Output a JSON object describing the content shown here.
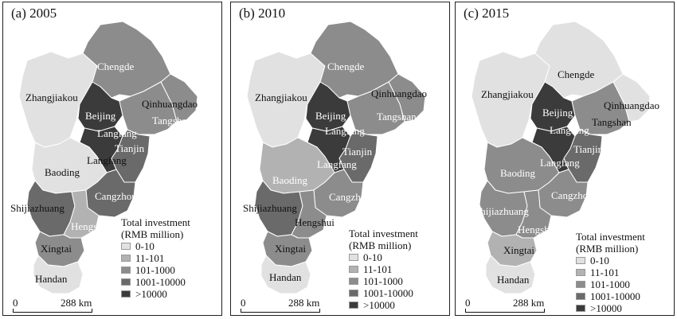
{
  "colors": {
    "c0": "#e1e1e1",
    "c1": "#b2b2b2",
    "c2": "#8c8c8c",
    "c3": "#6a6a6a",
    "c4": "#3b3b3b"
  },
  "legend": {
    "title_line1": "Total investment",
    "title_line2": "(RMB million)",
    "classes": [
      {
        "label": "0-10",
        "color_key": "c0"
      },
      {
        "label": "11-101",
        "color_key": "c1"
      },
      {
        "label": "101-1000",
        "color_key": "c2"
      },
      {
        "label": "1001-10000",
        "color_key": "c3"
      },
      {
        "label": ">10000",
        "color_key": "c4"
      }
    ]
  },
  "scale_bar": {
    "zero": "0",
    "distance": "288 km"
  },
  "panels": [
    {
      "title": "(a) 2005",
      "fill": {
        "Zhangjiakou": "c0",
        "Chengde": "c2",
        "Beijing": "c4",
        "Langfang": "c4",
        "Qinhuangdao": "c2",
        "Tangshan": "c2",
        "Tianjin": "c3",
        "Baoding": "c0",
        "Cangzhou": "c3",
        "Shijiazhuang": "c3",
        "Hengshui": "c1",
        "Xingtai": "c2",
        "Handan": "c0"
      },
      "labels": {
        "Zhangjiakou": "Zhangjiakou",
        "Chengde": "Chengde",
        "Beijing": "Beijing",
        "Qinhuangdao": "Qinhuangdao",
        "Tangshan": "Tangshan",
        "Langfang_north": "Langfang",
        "Tianjin": "Tianjin",
        "Langfang_south": "Langfang",
        "Baoding": "Baoding",
        "Cangzhou": "Cangzhou",
        "Shijiazhuang": "Shijiazhuang",
        "Hengshui": "Hengshui",
        "Xingtai": "Xingtai",
        "Handan": "Handan"
      }
    },
    {
      "title": "(b) 2010",
      "fill": {
        "Zhangjiakou": "c0",
        "Chengde": "c2",
        "Beijing": "c4",
        "Langfang": "c4",
        "Qinhuangdao": "c2",
        "Tangshan": "c2",
        "Tianjin": "c3",
        "Baoding": "c1",
        "Cangzhou": "c2",
        "Shijiazhuang": "c3",
        "Hengshui": "c2",
        "Xingtai": "c2",
        "Handan": "c0"
      },
      "labels": {
        "Zhangjiakou": "Zhangjiakou",
        "Chengde": "Chengde",
        "Beijing": "Beijing",
        "Qinhuangdao": "Qinhuangdao",
        "Langfang_north": "Langfang",
        "Tangshan": "Tangshan",
        "Tianjin": "Tianjin",
        "Langfang_south": "Langfang",
        "Baoding": "Baoding",
        "Cangzhou": "Cangzhou",
        "Shijiazhuang": "Shijiazhuang",
        "Hengshui": "Hengshui",
        "Xingtai": "Xingtai",
        "Handan": "Handan"
      }
    },
    {
      "title": "(c) 2015",
      "fill": {
        "Zhangjiakou": "c0",
        "Chengde": "c0",
        "Beijing": "c4",
        "Langfang": "c4",
        "Qinhuangdao": "c0",
        "Tangshan": "c2",
        "Tianjin": "c3",
        "Baoding": "c2",
        "Cangzhou": "c2",
        "Shijiazhuang": "c2",
        "Hengshui": "c2",
        "Xingtai": "c1",
        "Handan": "c0"
      },
      "labels": {
        "Zhangjiakou": "Zhangjiakou",
        "Chengde": "Chengde",
        "Beijing": "Beijing",
        "Qinhuangdao": "Qinhuangdao",
        "Langfang_north": "Langfang",
        "Tangshan": "Tangshan",
        "Tianjin": "Tianjin",
        "Langfang_south": "Langfang",
        "Baoding": "Baoding",
        "Cangzhou": "Cangzhou",
        "Shijiazhuang": "Shijiazhuang",
        "Hengshui": "Hengshui",
        "Xingtai": "Xingtai",
        "Handan": "Handan"
      }
    }
  ]
}
